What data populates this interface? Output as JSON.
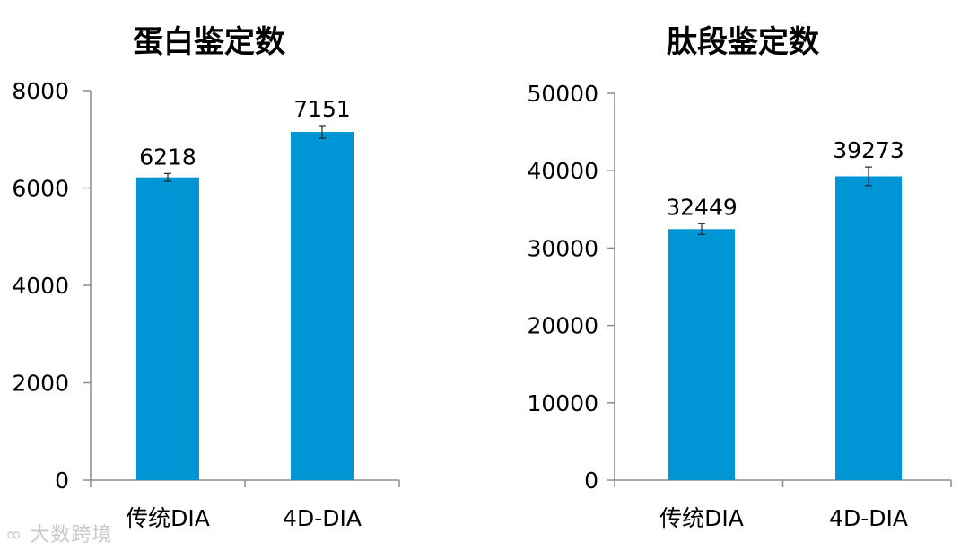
{
  "chart_data": [
    {
      "type": "bar",
      "title": "蛋白鉴定数",
      "categories": [
        "传统DIA",
        "4D-DIA"
      ],
      "values": [
        6218,
        7151
      ],
      "error": [
        80,
        130
      ],
      "data_labels": [
        "6218",
        "7151"
      ],
      "ylim": [
        0,
        8000
      ],
      "yticks": [
        0,
        2000,
        4000,
        6000,
        8000
      ],
      "ytick_labels": [
        "0",
        "2000",
        "4000",
        "6000",
        "8000"
      ],
      "xlabel": "",
      "ylabel": "",
      "grid": false,
      "bar_color": "#0096d6"
    },
    {
      "type": "bar",
      "title": "肽段鉴定数",
      "categories": [
        "传统DIA",
        "4D-DIA"
      ],
      "values": [
        32449,
        39273
      ],
      "error": [
        700,
        1200
      ],
      "data_labels": [
        "32449",
        "39273"
      ],
      "ylim": [
        0,
        50000
      ],
      "yticks": [
        0,
        10000,
        20000,
        30000,
        40000,
        50000
      ],
      "ytick_labels": [
        "0",
        "10000",
        "20000",
        "30000",
        "40000",
        "50000"
      ],
      "xlabel": "",
      "ylabel": "",
      "grid": false,
      "bar_color": "#0096d6"
    }
  ],
  "watermark": "大数跨境"
}
